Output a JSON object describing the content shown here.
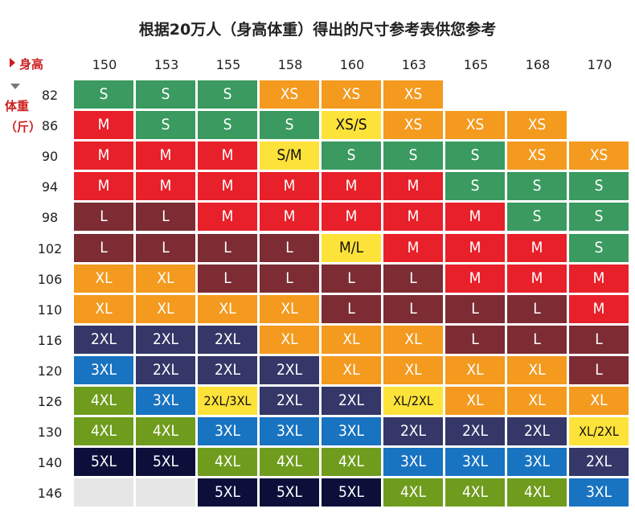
{
  "chart_data": {
    "type": "table",
    "title": "根据20万人（身高体重）得出的尺寸参考表供您参考",
    "x_label": "身高",
    "y_label": "体重",
    "y_unit": "（斤）",
    "heights": [
      "150",
      "153",
      "155",
      "158",
      "160",
      "163",
      "165",
      "168",
      "170"
    ],
    "weights": [
      "82",
      "86",
      "90",
      "94",
      "98",
      "102",
      "106",
      "110",
      "116",
      "120",
      "126",
      "130",
      "140",
      "146"
    ],
    "sizes": [
      [
        "S",
        "S",
        "S",
        "XS",
        "XS",
        "XS",
        "",
        "",
        ""
      ],
      [
        "M",
        "S",
        "S",
        "S",
        "XS/S",
        "XS",
        "XS",
        "XS",
        ""
      ],
      [
        "M",
        "M",
        "M",
        "S/M",
        "S",
        "S",
        "S",
        "XS",
        "XS"
      ],
      [
        "M",
        "M",
        "M",
        "M",
        "M",
        "M",
        "S",
        "S",
        "S"
      ],
      [
        "L",
        "L",
        "M",
        "M",
        "M",
        "M",
        "M",
        "S",
        "S"
      ],
      [
        "L",
        "L",
        "L",
        "L",
        "M/L",
        "M",
        "M",
        "M",
        "S"
      ],
      [
        "XL",
        "XL",
        "L",
        "L",
        "L",
        "L",
        "M",
        "M",
        "M"
      ],
      [
        "XL",
        "XL",
        "XL",
        "XL",
        "L",
        "L",
        "L",
        "L",
        "M"
      ],
      [
        "2XL",
        "2XL",
        "2XL",
        "XL",
        "XL",
        "XL",
        "L",
        "L",
        "L"
      ],
      [
        "3XL",
        "2XL",
        "2XL",
        "2XL",
        "XL",
        "XL",
        "XL",
        "XL",
        "L"
      ],
      [
        "4XL",
        "3XL",
        "2XL/3XL",
        "2XL",
        "2XL",
        "XL/2XL",
        "XL",
        "XL",
        "XL"
      ],
      [
        "4XL",
        "4XL",
        "3XL",
        "3XL",
        "3XL",
        "2XL",
        "2XL",
        "2XL",
        "XL/2XL"
      ],
      [
        "5XL",
        "5XL",
        "4XL",
        "4XL",
        "4XL",
        "3XL",
        "3XL",
        "3XL",
        "2XL"
      ],
      [
        "-",
        "-",
        "5XL",
        "5XL",
        "5XL",
        "4XL",
        "4XL",
        "4XL",
        "3XL"
      ]
    ],
    "size_colors": {
      "XS": "#f39a1f",
      "S": "#3a9a5f",
      "M": "#e8202a",
      "L": "#7d2c34",
      "XL": "#f39a1f",
      "2XL": "#343767",
      "3XL": "#1873c1",
      "4XL": "#6f9c1d",
      "5XL": "#0b0f3a",
      "mixed": "#fde23a",
      "empty": "#e6e6e6"
    }
  }
}
